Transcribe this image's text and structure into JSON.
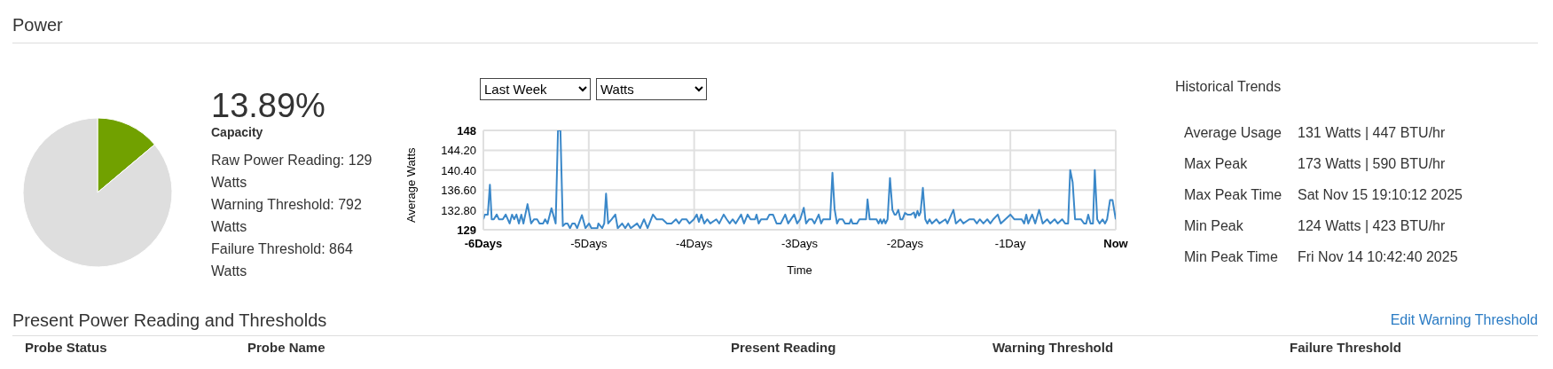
{
  "chart_data": [
    {
      "type": "other",
      "title": "Power"
    },
    {
      "type": "pie",
      "categories": [
        null,
        null
      ],
      "values": [
        13.89,
        86.11
      ],
      "colors": [
        "#71a100",
        "#dedede"
      ],
      "value_labels": [
        "13.89%",
        null
      ],
      "annotations": [
        "Capacity",
        "Raw Power Reading: 129 Watts",
        "Warning Threshold: 792 Watts",
        "Failure Threshold: 864 Watts"
      ]
    },
    {
      "type": "line",
      "xlabel": "Time",
      "ylabel": "Average Watts",
      "color": "#3b88c9",
      "grid": true,
      "marker": "none",
      "annotations": [
        "Last Week",
        "Watts"
      ],
      "xlim": [
        -6,
        0
      ],
      "ylim": [
        129,
        148
      ],
      "xticks": [
        {
          "value": -6,
          "label": "-6Days"
        },
        {
          "value": -5,
          "label": "-5Days"
        },
        {
          "value": -4,
          "label": "-4Days"
        },
        {
          "value": -3,
          "label": "-3Days"
        },
        {
          "value": -2,
          "label": "-2Days"
        },
        {
          "value": -1,
          "label": "-1Day"
        },
        {
          "value": 0,
          "label": "Now"
        }
      ],
      "yticks": [
        129,
        {
          "value": 132.8,
          "label": "132.80"
        },
        {
          "value": 136.6,
          "label": "136.60"
        },
        {
          "value": 140.4,
          "label": "140.40"
        },
        {
          "value": 144.2,
          "label": "144.20"
        },
        148
      ],
      "x": [
        -6.0,
        -5.986,
        -5.958,
        -5.938,
        -5.921,
        -5.901,
        -5.873,
        -5.853,
        -5.816,
        -5.788,
        -5.751,
        -5.728,
        -5.708,
        -5.686,
        -5.663,
        -5.64,
        -5.62,
        -5.581,
        -5.547,
        -5.518,
        -5.49,
        -5.467,
        -5.433,
        -5.414,
        -5.391,
        -5.354,
        -5.314,
        -5.292,
        -5.269,
        -5.246,
        -5.221,
        -5.201,
        -5.178,
        -5.156,
        -5.133,
        -5.11,
        -5.065,
        -5.031,
        -4.997,
        -4.975,
        -4.918,
        -4.909,
        -4.873,
        -4.853,
        -4.836,
        -4.816,
        -4.782,
        -4.748,
        -4.725,
        -4.683,
        -4.654,
        -4.626,
        -4.601,
        -4.541,
        -4.513,
        -4.476,
        -4.442,
        -4.391,
        -4.357,
        -4.3,
        -4.258,
        -4.215,
        -4.173,
        -4.144,
        -4.116,
        -4.074,
        -4.045,
        -4.003,
        -3.975,
        -3.955,
        -3.932,
        -3.904,
        -3.875,
        -3.847,
        -3.79,
        -3.762,
        -3.72,
        -3.691,
        -3.663,
        -3.635,
        -3.606,
        -3.555,
        -3.527,
        -3.493,
        -3.465,
        -3.422,
        -3.408,
        -3.388,
        -3.365,
        -3.309,
        -3.286,
        -3.252,
        -3.218,
        -3.179,
        -3.136,
        -3.108,
        -3.051,
        -3.023,
        -2.994,
        -2.96,
        -2.938,
        -2.909,
        -2.881,
        -2.858,
        -2.818,
        -2.795,
        -2.776,
        -2.71,
        -2.688,
        -2.668,
        -2.645,
        -2.625,
        -2.591,
        -2.568,
        -2.526,
        -2.511,
        -2.497,
        -2.455,
        -2.432,
        -2.369,
        -2.355,
        -2.335,
        -2.27,
        -2.25,
        -2.233,
        -2.219,
        -2.199,
        -2.185,
        -2.165,
        -2.142,
        -2.119,
        -2.099,
        -2.085,
        -2.063,
        -2.043,
        -2.023,
        -2.0,
        -1.977,
        -1.943,
        -1.915,
        -1.901,
        -1.881,
        -1.866,
        -1.852,
        -1.83,
        -1.807,
        -1.787,
        -1.767,
        -1.744,
        -1.702,
        -1.673,
        -1.616,
        -1.597,
        -1.54,
        -1.517,
        -1.474,
        -1.446,
        -1.389,
        -1.347,
        -1.318,
        -1.29,
        -1.256,
        -1.219,
        -1.19,
        -1.162,
        -1.119,
        -1.091,
        -1.0,
        -0.963,
        -0.892,
        -0.869,
        -0.849,
        -0.83,
        -0.793,
        -0.764,
        -0.727,
        -0.693,
        -0.651,
        -0.622,
        -0.58,
        -0.551,
        -0.509,
        -0.48,
        -0.452,
        -0.432,
        -0.409,
        -0.386,
        -0.33,
        -0.301,
        -0.281,
        -0.261,
        -0.239,
        -0.216,
        -0.199,
        -0.176,
        -0.153,
        -0.125,
        -0.102,
        -0.082,
        -0.054,
        -0.031,
        0
      ],
      "values": [
        131,
        131.9,
        131.9,
        137.6,
        131,
        131,
        131.9,
        131,
        131,
        131.9,
        130.2,
        131.9,
        131,
        131.9,
        130.2,
        131.9,
        130.2,
        133.9,
        130.2,
        131,
        131,
        130.2,
        130.2,
        131,
        130.2,
        133.1,
        130.2,
        148,
        148,
        129.7,
        130.2,
        130.2,
        129.3,
        130.2,
        130.2,
        129.3,
        131.8,
        129.3,
        130.2,
        129.3,
        129.3,
        130.2,
        129.3,
        130.2,
        135.9,
        130.2,
        131,
        131.9,
        129.3,
        130.2,
        129.3,
        130.2,
        129.3,
        130.2,
        129.3,
        131,
        129.3,
        131.9,
        131,
        131,
        130.2,
        130.2,
        131,
        130.2,
        131,
        131,
        130.2,
        131,
        131.9,
        130.5,
        131.9,
        130.2,
        131,
        130.2,
        131,
        130.2,
        131.9,
        131,
        130.2,
        131,
        130.2,
        131.9,
        130.2,
        131.9,
        131,
        131,
        131.9,
        130.2,
        131,
        131,
        131.9,
        131.9,
        130.2,
        130.2,
        131.9,
        130.2,
        131.9,
        130.2,
        131,
        133.2,
        130.2,
        131,
        131,
        130.2,
        131.9,
        130.2,
        131,
        131,
        139.9,
        133,
        130.2,
        131,
        131,
        130.2,
        130.2,
        131,
        130.2,
        130.2,
        131,
        131,
        134.8,
        131,
        131,
        130.2,
        131,
        130.2,
        131,
        130.2,
        131,
        138.9,
        132.8,
        131.9,
        131.9,
        132.8,
        131,
        131,
        132.2,
        131.9,
        131.9,
        132.3,
        131.3,
        132.6,
        131.7,
        132.3,
        137,
        131,
        130.2,
        131,
        130.2,
        131,
        130.2,
        131,
        130.2,
        132.8,
        130.2,
        131,
        130.2,
        131,
        131,
        130.2,
        131,
        130.2,
        131,
        130.2,
        131,
        131.9,
        130.2,
        131.9,
        131,
        131,
        130.2,
        131.9,
        130.2,
        131.9,
        130.2,
        132.8,
        130.2,
        131,
        130.2,
        131,
        130.2,
        131,
        130.2,
        130.2,
        140.4,
        138.1,
        131,
        131,
        130.2,
        130.2,
        131.9,
        130.2,
        130.2,
        140.4,
        131,
        130.2,
        131,
        130.2,
        131,
        134.7,
        134.7,
        131
      ]
    },
    {
      "type": "other",
      "title": "Historical Trends",
      "annotations": [
        "Average Usage",
        "131 Watts | 447 BTU/hr",
        "Max Peak",
        "173 Watts | 590 BTU/hr",
        "Max Peak Time",
        "Sat Nov 15 19:10:12 2025",
        "Min Peak",
        "124 Watts | 423 BTU/hr",
        "Min Peak Time",
        "Fri Nov 14 10:42:40 2025"
      ]
    },
    {
      "type": "other",
      "title": "Present Power Reading and Thresholds",
      "annotations": [
        "Edit Warning Threshold",
        "Probe Status",
        "Probe Name",
        "Present Reading",
        "Warning Threshold",
        "Failure Threshold"
      ]
    }
  ]
}
